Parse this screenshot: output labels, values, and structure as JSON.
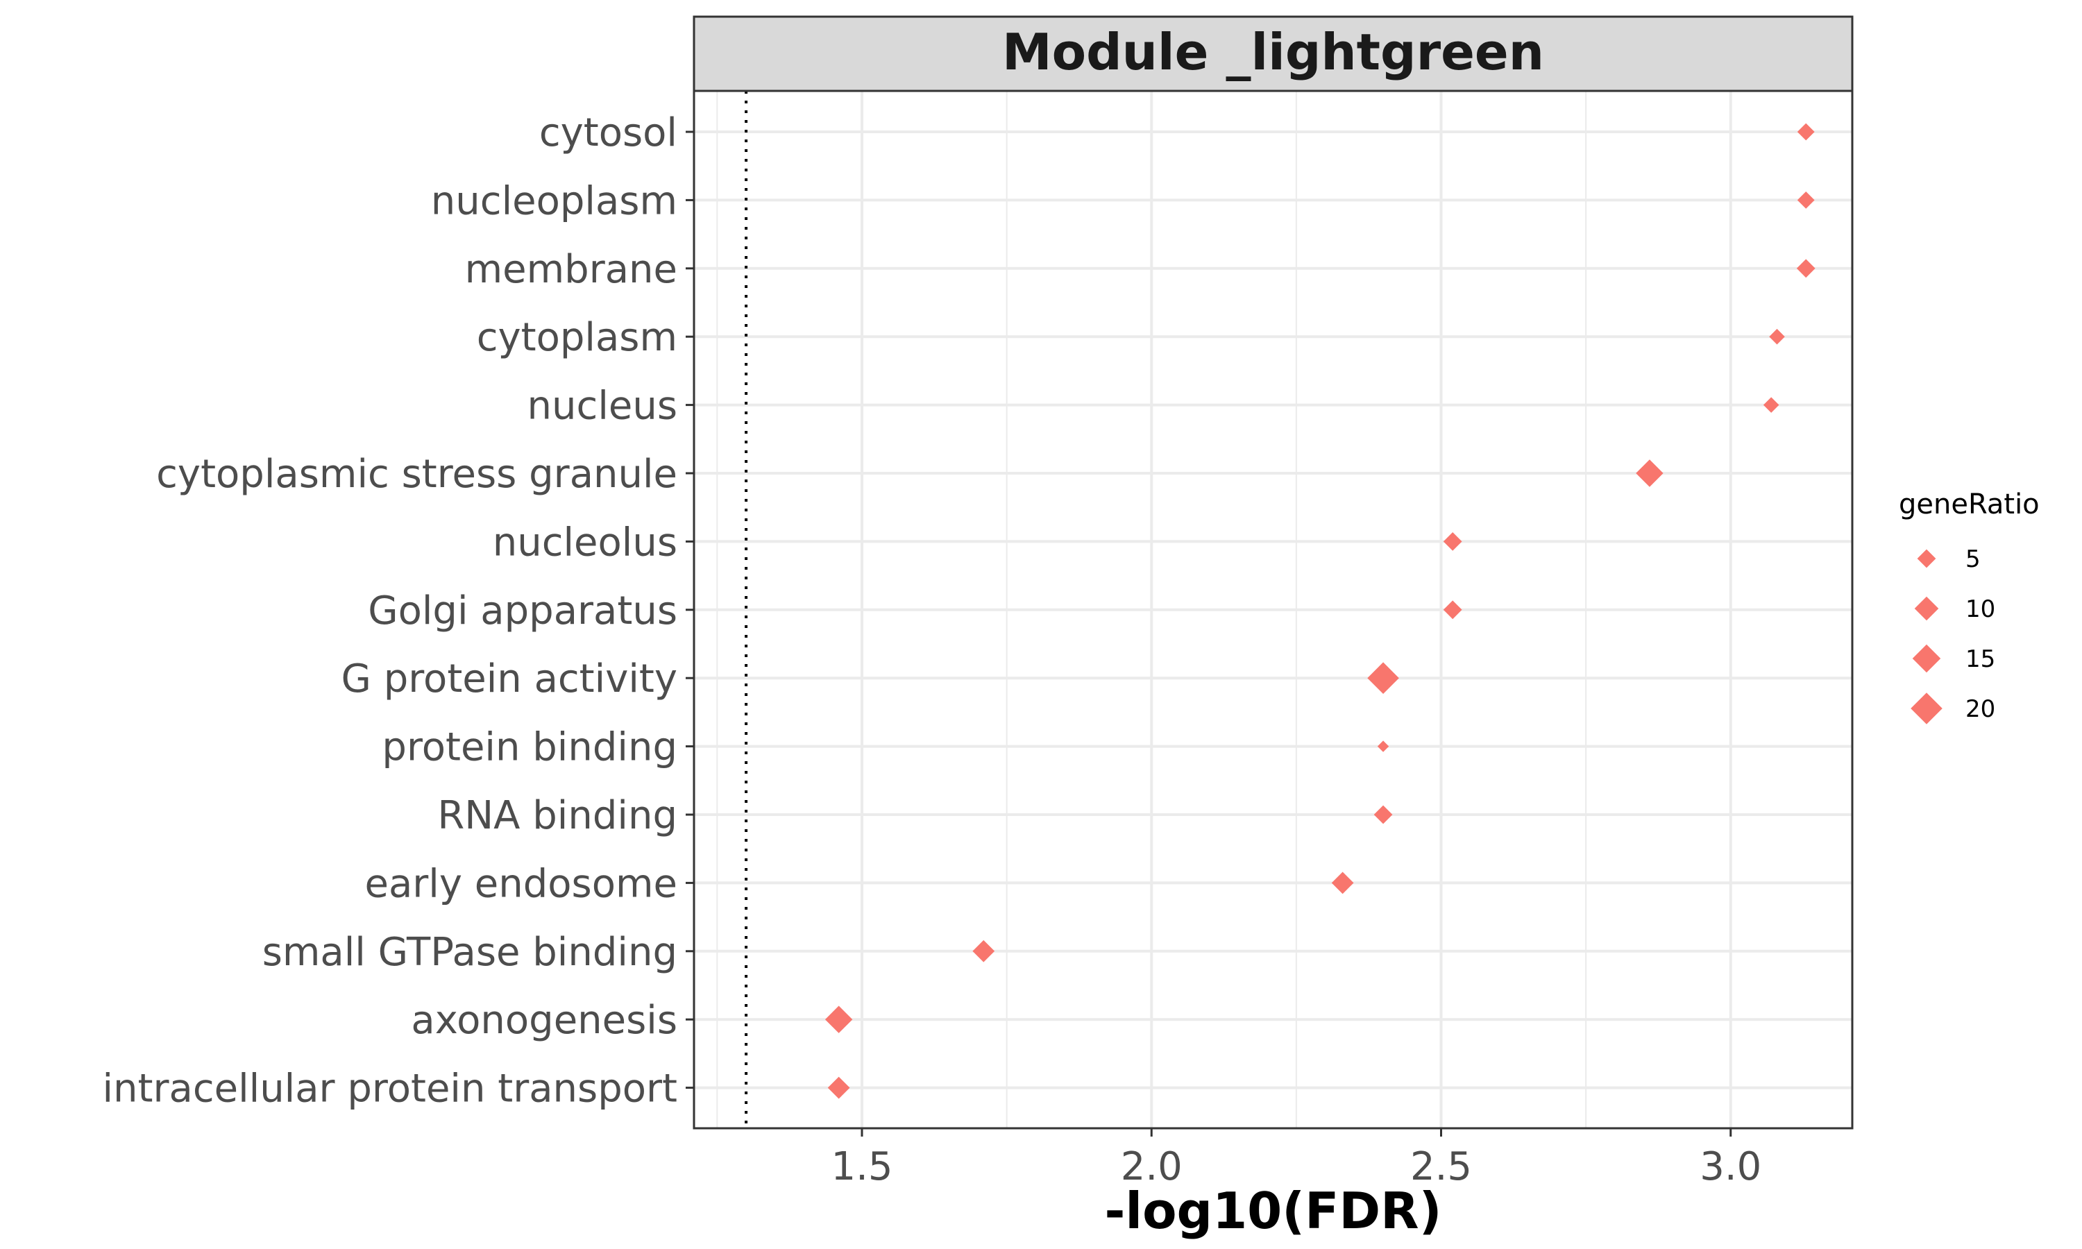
{
  "chart_data": {
    "type": "scatter",
    "title": "Module _lightgreen",
    "xlabel": "-log10(FDR)",
    "ylabel": "",
    "xlim": [
      1.21,
      3.21
    ],
    "x_ticks": [
      1.5,
      2.0,
      2.5,
      3.0
    ],
    "x_tick_labels": [
      "1.5",
      "2.0",
      "2.5",
      "3.0"
    ],
    "threshold_x": 1.3,
    "grid": true,
    "marker": "diamond",
    "color": "#F8766D",
    "categories": [
      "cytosol",
      "nucleoplasm",
      "membrane",
      "cytoplasm",
      "nucleus",
      "cytoplasmic stress granule",
      "nucleolus",
      "Golgi apparatus",
      "G protein activity",
      "protein binding",
      "RNA binding",
      "early endosome",
      "small GTPase binding",
      "axonogenesis",
      "intracellular protein transport"
    ],
    "x": [
      3.13,
      3.13,
      3.13,
      3.08,
      3.07,
      2.86,
      2.52,
      2.52,
      2.4,
      2.4,
      2.4,
      2.33,
      1.71,
      1.46,
      1.46
    ],
    "geneRatio": [
      4,
      4,
      5,
      3,
      3,
      14,
      5,
      5,
      20,
      1,
      5,
      8,
      8,
      14,
      8
    ],
    "legend": {
      "title": "geneRatio",
      "position": "right",
      "entries": [
        {
          "label": "5",
          "value": 5
        },
        {
          "label": "10",
          "value": 10
        },
        {
          "label": "15",
          "value": 15
        },
        {
          "label": "20",
          "value": 20
        }
      ]
    }
  }
}
